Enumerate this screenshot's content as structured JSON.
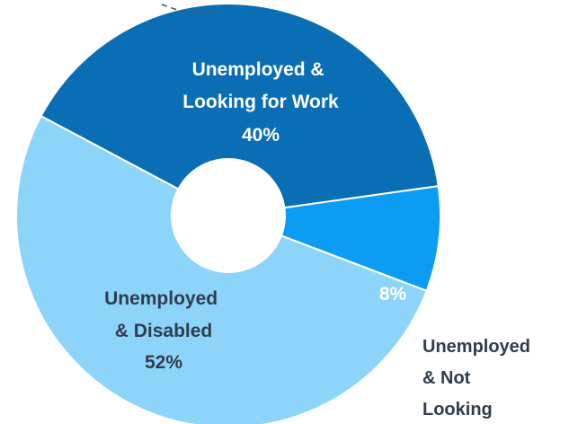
{
  "chart_data": {
    "type": "pie",
    "variant": "donut",
    "title": "",
    "slices": [
      {
        "label": "Unemployed & Looking for Work",
        "label_lines": [
          "Unemployed &",
          "Looking for Work"
        ],
        "value": 40,
        "value_label": "40%",
        "color": "#0a6eb5",
        "text_color": "#ffffff"
      },
      {
        "label": "Unemployed & Not Looking",
        "label_lines": [
          "Unemployed",
          "& Not",
          "Looking"
        ],
        "value": 8,
        "value_label": "8%",
        "color": "#0d9cf4",
        "text_color": "#ffffff",
        "label_color": "#2f3d4d"
      },
      {
        "label": "Unemployed & Disabled",
        "label_lines": [
          "Unemployed",
          "& Disabled"
        ],
        "value": 52,
        "value_label": "52%",
        "color": "#8dd4fb",
        "text_color": "#2f3d4d"
      }
    ],
    "legend": "none"
  }
}
